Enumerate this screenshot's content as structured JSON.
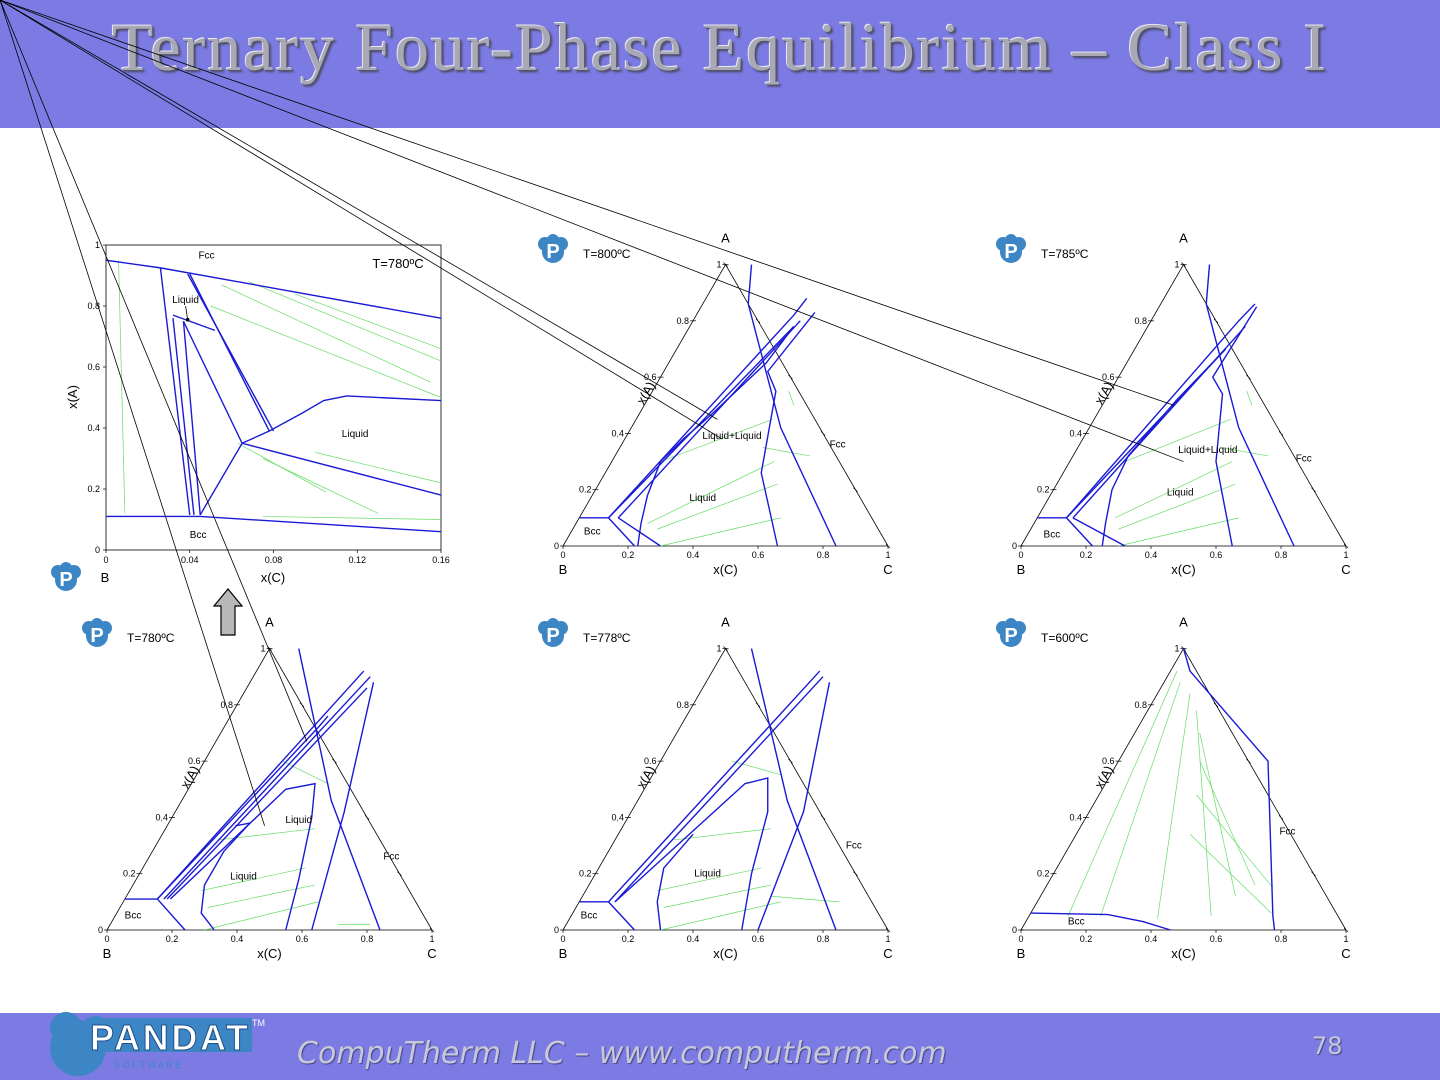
{
  "slide": {
    "title": "Ternary Four-Phase Equilibrium – Class I",
    "footer": "CompuTherm LLC – www.computherm.com",
    "page_number": "78",
    "logo_text": "PANDAT",
    "logo_sub": "S O F T W A R E",
    "logo_tm": "TM"
  },
  "colors": {
    "band": "#7b7be3",
    "boundary": "#1a1ad6",
    "tieline": "#66dd66",
    "frame": "#000000"
  },
  "icons": {
    "logo": "pandat-logo-icon",
    "arrow": "up-arrow-icon"
  },
  "chart_data": [
    {
      "type": "line",
      "subtype": "phase-diagram-zoom",
      "annotation": "T=780ºC",
      "xlabel": "x(C)",
      "ylabel": "x(A)",
      "corner_label": "B",
      "xlim": [
        0,
        0.16
      ],
      "ylim": [
        0,
        1
      ],
      "xticks": [
        "0",
        "0.04",
        "0.08",
        "0.12",
        "0.16"
      ],
      "yticks": [
        "0",
        "0.2",
        "0.4",
        "0.6",
        "0.8",
        "1"
      ],
      "phase_labels": [
        "Fcc",
        "Liquid",
        "Liquid",
        "Bcc"
      ]
    },
    {
      "type": "line",
      "subtype": "ternary-isothermal-section",
      "annotation": "T=800ºC",
      "corners": [
        "A",
        "B",
        "C"
      ],
      "xlabel": "x(C)",
      "ylabel": "x(A)",
      "ticks": [
        "0",
        "0.2",
        "0.4",
        "0.6",
        "0.8",
        "1"
      ],
      "phase_labels": [
        "Fcc",
        "Liquid",
        "Liquid+Liquid",
        "Bcc"
      ]
    },
    {
      "type": "line",
      "subtype": "ternary-isothermal-section",
      "annotation": "T=785ºC",
      "corners": [
        "A",
        "B",
        "C"
      ],
      "xlabel": "x(C)",
      "ylabel": "x(A)",
      "ticks": [
        "0",
        "0.2",
        "0.4",
        "0.6",
        "0.8",
        "1"
      ],
      "phase_labels": [
        "Fcc",
        "Liquid",
        "Liquid+Liquid",
        "Bcc"
      ]
    },
    {
      "type": "line",
      "subtype": "ternary-isothermal-section",
      "annotation": "T=780ºC",
      "corners": [
        "A",
        "B",
        "C"
      ],
      "xlabel": "x(C)",
      "ylabel": "x(A)",
      "ticks": [
        "0",
        "0.2",
        "0.4",
        "0.6",
        "0.8",
        "1"
      ],
      "phase_labels": [
        "Fcc",
        "Liquid",
        "Liquid",
        "Bcc"
      ]
    },
    {
      "type": "line",
      "subtype": "ternary-isothermal-section",
      "annotation": "T=778ºC",
      "corners": [
        "A",
        "B",
        "C"
      ],
      "xlabel": "x(C)",
      "ylabel": "x(A)",
      "ticks": [
        "0",
        "0.2",
        "0.4",
        "0.6",
        "0.8",
        "1"
      ],
      "phase_labels": [
        "Fcc",
        "Liquid",
        "Bcc"
      ]
    },
    {
      "type": "line",
      "subtype": "ternary-isothermal-section",
      "annotation": "T=600ºC",
      "corners": [
        "A",
        "B",
        "C"
      ],
      "xlabel": "x(C)",
      "ylabel": "x(A)",
      "ticks": [
        "0",
        "0.2",
        "0.4",
        "0.6",
        "0.8",
        "1"
      ],
      "phase_labels": [
        "Fcc",
        "Bcc"
      ]
    }
  ]
}
